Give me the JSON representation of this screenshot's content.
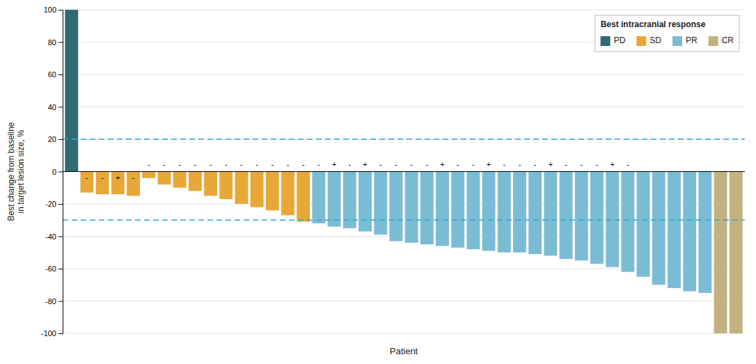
{
  "chart_data": {
    "type": "bar",
    "xlabel": "Patient",
    "ylabel": "Best change from baseline\nin target lesion size, %",
    "legend_title": "Best intracranial response",
    "legend": "upper right",
    "stacked": true,
    "grid": true,
    "tick_labels": "y",
    "ylim": [
      -100,
      100
    ],
    "yticks": [
      -100,
      -80,
      -60,
      -40,
      -20,
      0,
      20,
      40,
      60,
      80,
      100
    ],
    "categories": [
      null,
      null,
      null,
      null,
      null,
      null,
      null,
      null,
      null,
      null,
      null,
      null,
      null,
      null,
      null,
      null,
      null,
      null,
      null,
      null,
      null,
      null,
      null,
      null,
      null,
      null,
      null,
      null,
      null,
      null,
      null,
      null,
      null,
      null,
      null,
      null,
      null,
      null,
      null,
      null,
      null,
      null,
      null,
      null
    ],
    "series": [
      {
        "name": "PD",
        "color": "#2e6b72",
        "values": [
          100,
          null,
          null,
          null,
          null,
          null,
          null,
          null,
          null,
          null,
          null,
          null,
          null,
          null,
          null,
          null,
          null,
          null,
          null,
          null,
          null,
          null,
          null,
          null,
          null,
          null,
          null,
          null,
          null,
          null,
          null,
          null,
          null,
          null,
          null,
          null,
          null,
          null,
          null,
          null,
          null,
          null,
          null,
          null
        ]
      },
      {
        "name": "SD",
        "color": "#e8a838",
        "values": [
          null,
          -13,
          -14,
          -14,
          -15,
          -4,
          -8,
          -10,
          -12,
          -15,
          -17,
          -20,
          -22,
          -24,
          -27,
          -31,
          null,
          null,
          null,
          null,
          null,
          null,
          null,
          null,
          null,
          null,
          null,
          null,
          null,
          null,
          null,
          null,
          null,
          null,
          null,
          null,
          null,
          null,
          null,
          null,
          null,
          null,
          null,
          null
        ]
      },
      {
        "name": "PR",
        "color": "#7bbcd5",
        "values": [
          null,
          null,
          null,
          null,
          null,
          null,
          null,
          null,
          null,
          null,
          null,
          null,
          null,
          null,
          null,
          null,
          -32,
          -34,
          -35,
          -37,
          -39,
          -43,
          -44,
          -45,
          -46,
          -47,
          -48,
          -49,
          -50,
          -50,
          -51,
          -52,
          -54,
          -55,
          -57,
          -59,
          -62,
          -65,
          -70,
          -72,
          -74,
          -75,
          null,
          null
        ]
      },
      {
        "name": "CR",
        "color": "#c2b280",
        "values": [
          null,
          null,
          null,
          null,
          null,
          null,
          null,
          null,
          null,
          null,
          null,
          null,
          null,
          null,
          null,
          null,
          null,
          null,
          null,
          null,
          null,
          null,
          null,
          null,
          null,
          null,
          null,
          null,
          null,
          null,
          null,
          null,
          null,
          null,
          null,
          null,
          null,
          null,
          null,
          null,
          null,
          null,
          -100,
          -100
        ]
      }
    ],
    "reference_lines": [
      {
        "y": 20,
        "color": "#29a8d4",
        "line_style": "dashed"
      },
      {
        "y": -30,
        "color": "#29a8d4",
        "line_style": "dashed"
      }
    ],
    "annotations": [
      {
        "text": "-",
        "x": 1,
        "y": -4
      },
      {
        "text": "-",
        "x": 2,
        "y": -4
      },
      {
        "text": "+",
        "x": 3,
        "y": -4
      },
      {
        "text": "-",
        "x": 4,
        "y": -4
      },
      {
        "text": "-",
        "x": 5,
        "y": 4
      },
      {
        "text": "-",
        "x": 6,
        "y": 4
      },
      {
        "text": "-",
        "x": 7,
        "y": 4
      },
      {
        "text": "-",
        "x": 8,
        "y": 4
      },
      {
        "text": "-",
        "x": 9,
        "y": 4
      },
      {
        "text": "-",
        "x": 10,
        "y": 4
      },
      {
        "text": "-",
        "x": 11,
        "y": 4
      },
      {
        "text": "-",
        "x": 12,
        "y": 4
      },
      {
        "text": "-",
        "x": 13,
        "y": 4
      },
      {
        "text": "-",
        "x": 14,
        "y": 4
      },
      {
        "text": "-",
        "x": 15,
        "y": 4
      },
      {
        "text": "-",
        "x": 16,
        "y": 4
      },
      {
        "text": "+",
        "x": 17,
        "y": 4
      },
      {
        "text": "-",
        "x": 18,
        "y": 4
      },
      {
        "text": "+",
        "x": 19,
        "y": 4
      },
      {
        "text": "-",
        "x": 20,
        "y": 4
      },
      {
        "text": "-",
        "x": 21,
        "y": 4
      },
      {
        "text": "-",
        "x": 22,
        "y": 4
      },
      {
        "text": "-",
        "x": 23,
        "y": 4
      },
      {
        "text": "+",
        "x": 24,
        "y": 4
      },
      {
        "text": "-",
        "x": 25,
        "y": 4
      },
      {
        "text": "-",
        "x": 26,
        "y": 4
      },
      {
        "text": "+",
        "x": 27,
        "y": 4
      },
      {
        "text": "-",
        "x": 28,
        "y": 4
      },
      {
        "text": "-",
        "x": 29,
        "y": 4
      },
      {
        "text": "-",
        "x": 30,
        "y": 4
      },
      {
        "text": "+",
        "x": 31,
        "y": 4
      },
      {
        "text": "-",
        "x": 32,
        "y": 4
      },
      {
        "text": "-",
        "x": 33,
        "y": 4
      },
      {
        "text": "-",
        "x": 34,
        "y": 4
      },
      {
        "text": "+",
        "x": 35,
        "y": 4
      },
      {
        "text": "-",
        "x": 36,
        "y": 4
      }
    ]
  }
}
